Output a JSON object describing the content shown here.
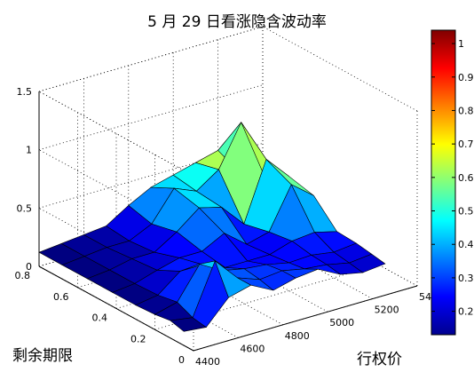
{
  "chart_data": {
    "type": "surface",
    "title": "5 月 29 日看涨隐含波动率",
    "xlabel": "行权价",
    "ylabel": "剩余期限",
    "zlabel": "",
    "z_ticks": [
      "0",
      "0.5",
      "1",
      "1.5"
    ],
    "x_ticks": [
      "4400",
      "4600",
      "4800",
      "5000",
      "5200",
      "54"
    ],
    "y_ticks": [
      "0",
      "0.2",
      "0.4",
      "0.6",
      "0.8"
    ],
    "xlim": [
      4400,
      5400
    ],
    "ylim": [
      0,
      0.8
    ],
    "zlim": [
      0,
      1.5
    ],
    "colorbar": {
      "ticks": [
        "0.2",
        "0.3",
        "0.4",
        "0.5",
        "0.6",
        "0.7",
        "0.8",
        "0.9",
        "1"
      ],
      "range": [
        0.13,
        1.04
      ],
      "colormap": "jet"
    },
    "grid": true,
    "strikes": [
      4400,
      4500,
      4600,
      4700,
      4800,
      4900,
      5000,
      5100,
      5200,
      5300
    ],
    "maturities": [
      0.05,
      0.12,
      0.2,
      0.3,
      0.42,
      0.55,
      0.68,
      0.8
    ],
    "z": [
      [
        0.12,
        0.1,
        0.3,
        0.35,
        0.25,
        0.3,
        0.32,
        0.22,
        0.18,
        0.2
      ],
      [
        0.15,
        0.12,
        0.55,
        0.35,
        0.28,
        0.3,
        0.26,
        0.24,
        0.2,
        0.22
      ],
      [
        0.13,
        0.18,
        0.45,
        0.34,
        0.3,
        0.28,
        0.24,
        0.25,
        0.22,
        0.24
      ],
      [
        0.12,
        0.15,
        0.3,
        0.3,
        0.22,
        0.22,
        0.22,
        0.28,
        0.3,
        0.25
      ],
      [
        0.12,
        0.14,
        0.2,
        0.25,
        0.25,
        0.35,
        0.2,
        0.25,
        0.6,
        0.45
      ],
      [
        0.12,
        0.14,
        0.18,
        0.18,
        0.3,
        0.45,
        0.4,
        0.2,
        0.7,
        0.5
      ],
      [
        0.12,
        0.14,
        0.16,
        0.16,
        0.25,
        0.5,
        0.42,
        0.55,
        0.9,
        0.4
      ],
      [
        0.12,
        0.14,
        0.16,
        0.18,
        0.3,
        0.4,
        0.45,
        0.5,
        0.55,
        0.3
      ]
    ]
  }
}
